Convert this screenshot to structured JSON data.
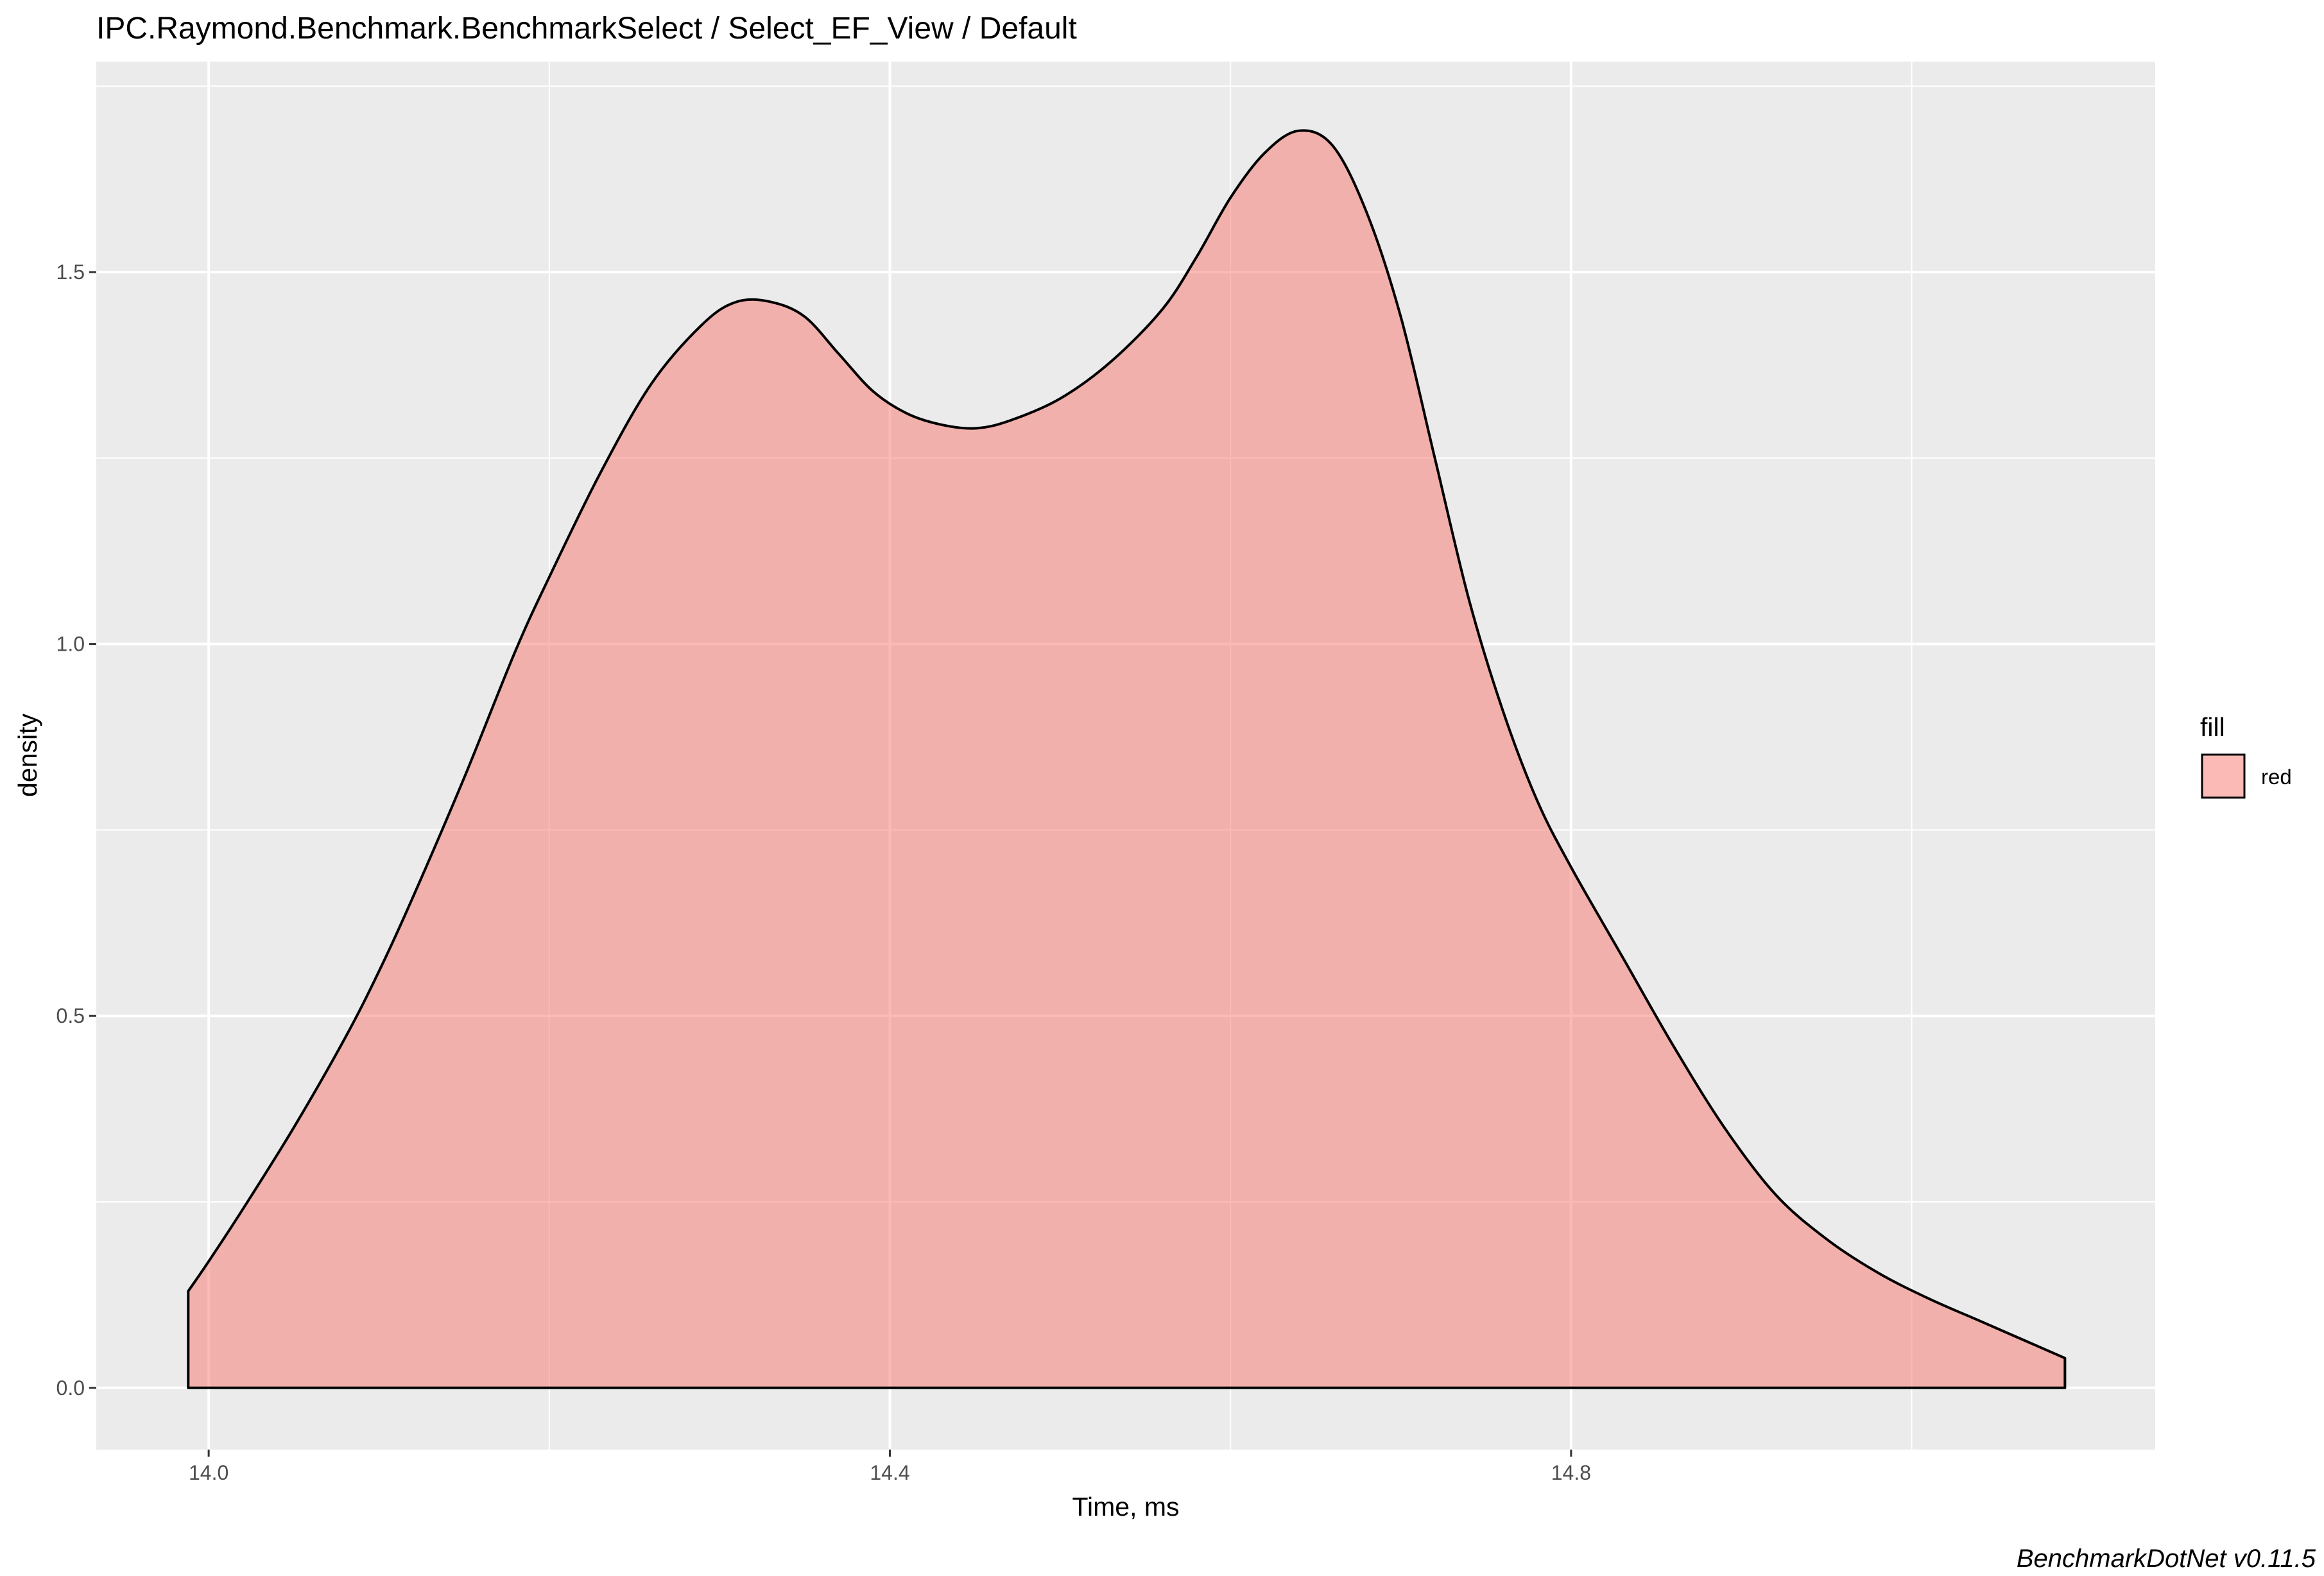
{
  "chart_data": {
    "type": "area",
    "title": "IPC.Raymond.Benchmark.BenchmarkSelect / Select_EF_View / Default",
    "xlabel": "Time, ms",
    "ylabel": "density",
    "caption": "BenchmarkDotNet v0.11.5",
    "xlim": [
      13.934,
      15.143
    ],
    "ylim": [
      -0.083,
      1.783
    ],
    "x_ticks": [
      14.0,
      14.4,
      14.8
    ],
    "x_tick_labels": [
      "14.0",
      "14.4",
      "14.8"
    ],
    "y_ticks": [
      0.0,
      0.5,
      1.0,
      1.5
    ],
    "y_tick_labels": [
      "0.0",
      "0.5",
      "1.0",
      "1.5"
    ],
    "grid": true,
    "legend": {
      "title": "fill",
      "position": "right",
      "entries": [
        {
          "label": "red",
          "color": "#F8766D"
        }
      ]
    },
    "colors": {
      "panel": "#EBEBEB",
      "grid": "#FFFFFF",
      "fill": "#F8766D",
      "fill_opacity": 0.5,
      "outline": "#000000"
    },
    "series": [
      {
        "name": "red",
        "x": [
          13.988,
          14.0,
          14.02,
          14.05,
          14.08,
          14.1,
          14.12,
          14.15,
          14.18,
          14.2,
          14.23,
          14.26,
          14.29,
          14.31,
          14.33,
          14.35,
          14.37,
          14.39,
          14.41,
          14.43,
          14.45,
          14.47,
          14.5,
          14.53,
          14.56,
          14.58,
          14.6,
          14.62,
          14.64,
          14.66,
          14.68,
          14.7,
          14.72,
          14.74,
          14.76,
          14.78,
          14.8,
          14.83,
          14.86,
          14.89,
          14.92,
          14.95,
          14.98,
          15.01,
          15.04,
          15.07,
          15.09
        ],
        "y": [
          0.13,
          0.17,
          0.24,
          0.35,
          0.47,
          0.56,
          0.66,
          0.82,
          0.99,
          1.09,
          1.23,
          1.35,
          1.43,
          1.46,
          1.46,
          1.44,
          1.39,
          1.34,
          1.31,
          1.295,
          1.29,
          1.3,
          1.33,
          1.38,
          1.45,
          1.52,
          1.6,
          1.66,
          1.69,
          1.67,
          1.58,
          1.44,
          1.25,
          1.06,
          0.91,
          0.79,
          0.7,
          0.58,
          0.46,
          0.35,
          0.26,
          0.2,
          0.155,
          0.12,
          0.09,
          0.06,
          0.04
        ]
      }
    ]
  }
}
